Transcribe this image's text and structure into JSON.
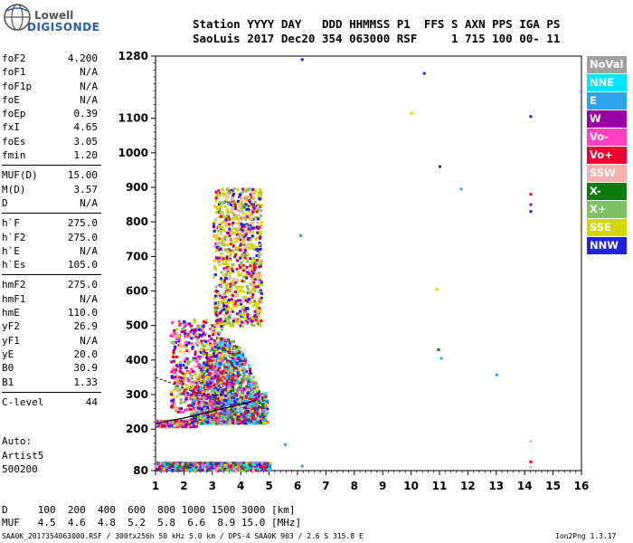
{
  "logo": {
    "line1": "Lowell",
    "line2": "DIGISONDE"
  },
  "header": {
    "line1": "Station YYYY DAY   DDD HHMMSS P1  FFS S AXN PPS IGA PS",
    "line2": "SaoLuis 2017 Dec20 354 063000 RSF     1 715 100 00- 11"
  },
  "params": {
    "group1": [
      {
        "label": "foF2",
        "value": "4.200"
      },
      {
        "label": "foF1",
        "value": "N/A"
      },
      {
        "label": "foF1p",
        "value": "N/A"
      },
      {
        "label": "foE",
        "value": "N/A"
      },
      {
        "label": "foEp",
        "value": "0.39"
      },
      {
        "label": "fxI",
        "value": "4.65"
      },
      {
        "label": "foEs",
        "value": "3.05"
      },
      {
        "label": "fmin",
        "value": "1.20"
      }
    ],
    "group2": [
      {
        "label": "MUF(D)",
        "value": "15.00"
      },
      {
        "label": "M(D)",
        "value": "3.57"
      },
      {
        "label": "D",
        "value": "N/A"
      }
    ],
    "group3": [
      {
        "label": "h`F",
        "value": "275.0"
      },
      {
        "label": "h`F2",
        "value": "275.0"
      },
      {
        "label": "h`E",
        "value": "N/A"
      },
      {
        "label": "h`Es",
        "value": "105.0"
      }
    ],
    "group4": [
      {
        "label": "hmF2",
        "value": "275.0"
      },
      {
        "label": "hmF1",
        "value": "N/A"
      },
      {
        "label": "hmE",
        "value": "110.0"
      },
      {
        "label": "yF2",
        "value": "26.9"
      },
      {
        "label": "yF1",
        "value": "N/A"
      },
      {
        "label": "yE",
        "value": "20.0"
      },
      {
        "label": "B0",
        "value": "30.9"
      },
      {
        "label": "B1",
        "value": "1.33"
      }
    ],
    "group5": [
      {
        "label": "C-level",
        "value": "44"
      }
    ]
  },
  "auto": {
    "line1": "Auto:",
    "line2": "Artist5",
    "line3": "500200"
  },
  "legend": [
    {
      "label": "NoVal",
      "color": "#a0a0a0"
    },
    {
      "label": "NNE",
      "color": "#00e5ff"
    },
    {
      "label": "E",
      "color": "#2fa3f0"
    },
    {
      "label": "W",
      "color": "#9b00a8"
    },
    {
      "label": "Vo-",
      "color": "#ff40c0"
    },
    {
      "label": "Vo+",
      "color": "#f00030"
    },
    {
      "label": "SSW",
      "color": "#f5b0b0"
    },
    {
      "label": "X-",
      "color": "#107a10"
    },
    {
      "label": "X+",
      "color": "#7fc060"
    },
    {
      "label": "SSE",
      "color": "#d6d600"
    },
    {
      "label": "NNW",
      "color": "#2020e0"
    }
  ],
  "dmuf": {
    "line1": "D     100  200  400  600  800 1000 1500 3000 [km]",
    "line2": "MUF   4.5  4.6  4.8  5.2  5.8  6.6  8.9 15.0 [MHz]"
  },
  "footer": "SAA0K_2017354063000.RSF / 300fx256h 50 kHz 5.0 km / DPS-4 SAA0K 903 / 2.6 S 315.8 E",
  "version": "Ion2Png 1.3.17",
  "chart_data": {
    "type": "scatter",
    "title": "",
    "xlabel": "",
    "ylabel": "",
    "xlim": [
      1,
      16
    ],
    "ylim": [
      80,
      1280
    ],
    "x_ticks": [
      1,
      2,
      3,
      4,
      5,
      6,
      7,
      8,
      9,
      10,
      11,
      12,
      13,
      14,
      15,
      16
    ],
    "y_ticks": [
      80,
      200,
      300,
      400,
      500,
      600,
      700,
      800,
      900,
      1000,
      1100,
      1280
    ],
    "trace": {
      "x": [
        1.0,
        1.5,
        2.0,
        2.5,
        3.0,
        3.5,
        4.0,
        4.5,
        4.55
      ],
      "y": [
        215,
        225,
        232,
        242,
        252,
        262,
        272,
        282,
        285
      ]
    },
    "trace2": {
      "x": [
        1.0,
        1.5,
        2.0,
        2.5,
        3.0,
        3.5
      ],
      "y": [
        350,
        335,
        318,
        305,
        300,
        298
      ]
    },
    "regions": [
      {
        "x": [
          2.2,
          4.9
        ],
        "y": [
          220,
          470
        ],
        "density": "high"
      },
      {
        "x": [
          3.0,
          4.7
        ],
        "y": [
          500,
          900
        ],
        "density": "med"
      },
      {
        "x": [
          1.5,
          3.3
        ],
        "y": [
          250,
          520
        ],
        "density": "low"
      },
      {
        "x": [
          1.0,
          5.0
        ],
        "y": [
          84,
          106
        ],
        "density": "high"
      },
      {
        "x": [
          1.0,
          2.4
        ],
        "y": [
          210,
          228
        ],
        "density": "low"
      }
    ],
    "points": [
      {
        "x": 6.15,
        "y": 1270,
        "c": "NNW"
      },
      {
        "x": 10.45,
        "y": 1230,
        "c": "NNW"
      },
      {
        "x": 14.2,
        "y": 1105,
        "c": "NNW"
      },
      {
        "x": 11.0,
        "y": 960,
        "c": "NNW"
      },
      {
        "x": 11.75,
        "y": 895,
        "c": "E"
      },
      {
        "x": 10.0,
        "y": 1115,
        "c": "SSE"
      },
      {
        "x": 14.2,
        "y": 880,
        "c": "Vo+"
      },
      {
        "x": 14.2,
        "y": 850,
        "c": "W"
      },
      {
        "x": 14.2,
        "y": 830,
        "c": "NNW"
      },
      {
        "x": 6.1,
        "y": 760,
        "c": "E"
      },
      {
        "x": 10.95,
        "y": 430,
        "c": "X-"
      },
      {
        "x": 11.05,
        "y": 405,
        "c": "E"
      },
      {
        "x": 13.0,
        "y": 357,
        "c": "E"
      },
      {
        "x": 10.9,
        "y": 605,
        "c": "SSE"
      },
      {
        "x": 5.55,
        "y": 155,
        "c": "E"
      },
      {
        "x": 6.15,
        "y": 93,
        "c": "E"
      },
      {
        "x": 14.2,
        "y": 165,
        "c": "SSW"
      },
      {
        "x": 14.2,
        "y": 105,
        "c": "Vo+"
      },
      {
        "x": 14.2,
        "y": 90,
        "c": "SSW"
      }
    ]
  }
}
